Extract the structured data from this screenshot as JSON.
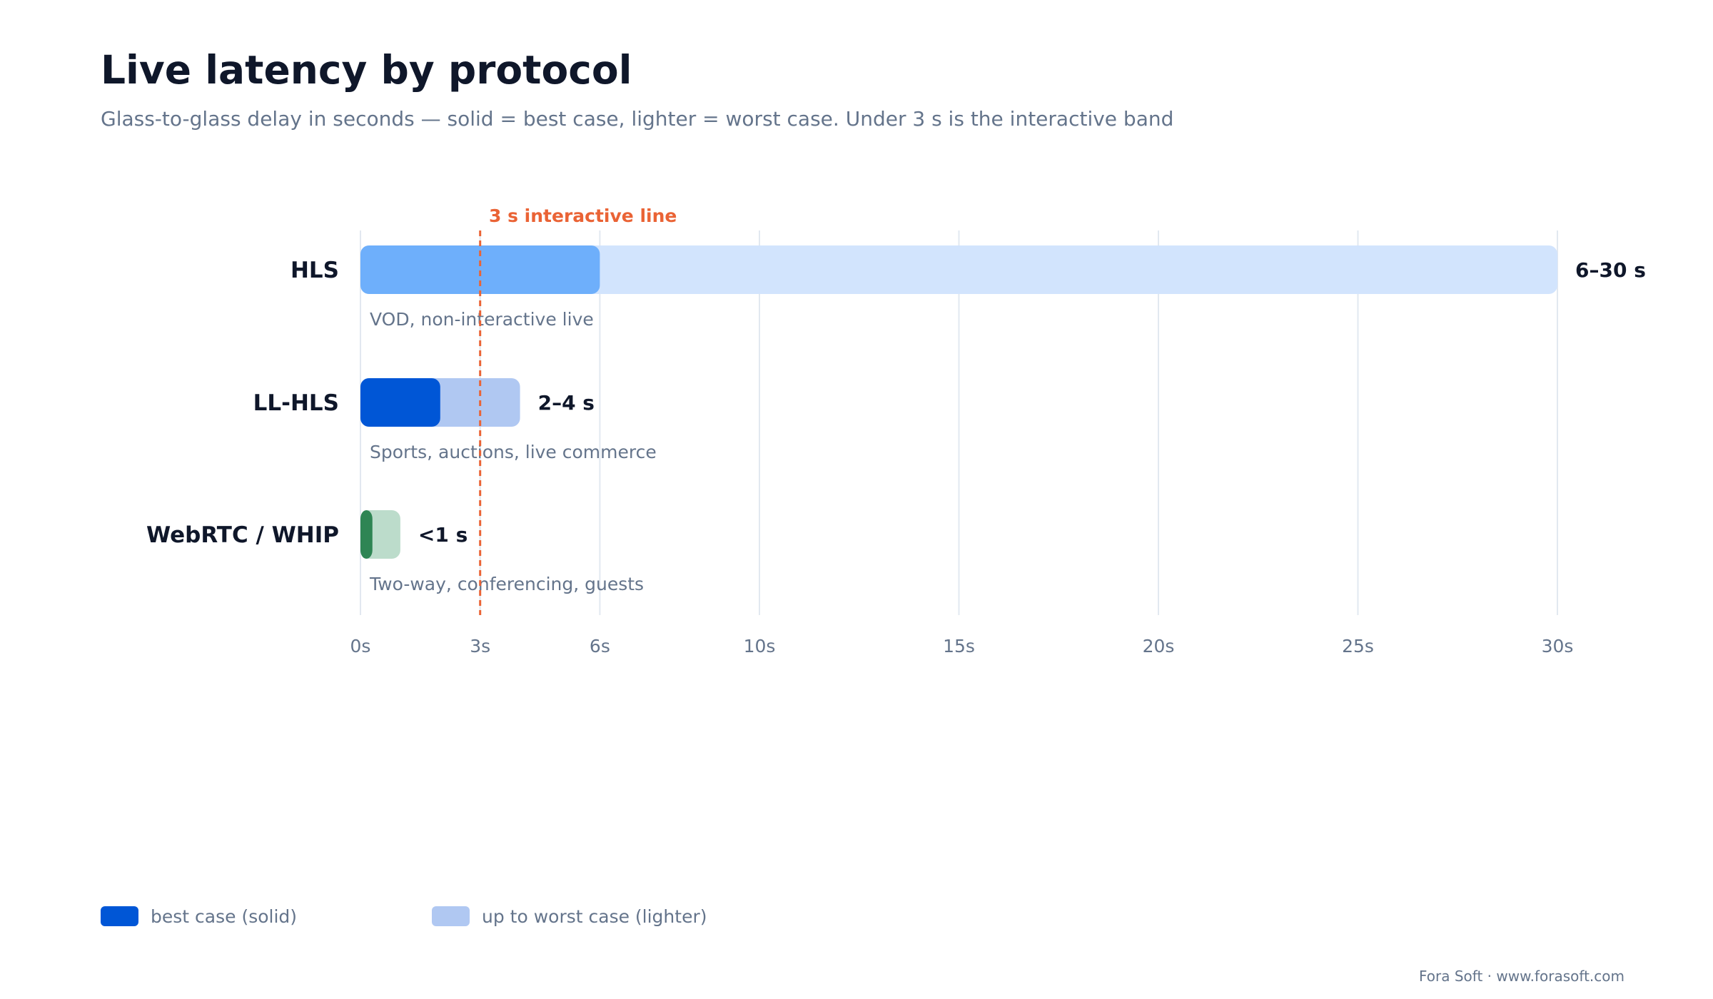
{
  "title": "Live latency by protocol",
  "subtitle": "Glass-to-glass delay in seconds — solid = best case, lighter = worst case. Under 3 s is the interactive band",
  "chart_data": {
    "type": "bar",
    "orientation": "horizontal",
    "categories": [
      "HLS",
      "LL-HLS",
      "WebRTC / WHIP"
    ],
    "series": [
      {
        "name": "best case (solid)",
        "values": [
          6,
          2,
          0.3
        ]
      },
      {
        "name": "up to worst case (lighter)",
        "values": [
          30,
          4,
          1
        ]
      }
    ],
    "value_labels": [
      "6–30 s",
      "2–4 s",
      "<1 s"
    ],
    "descriptions": [
      "VOD, non-interactive live",
      "Sports, auctions, live commerce",
      "Two-way, conferencing, guests"
    ],
    "bar_colors": [
      {
        "solid": "#6eaffb",
        "light": "#d2e4fd"
      },
      {
        "solid": "#0056d6",
        "light": "#b0c8f2"
      },
      {
        "solid": "#2e8554",
        "light": "#bcdccb"
      }
    ],
    "x_ticks": [
      0,
      3,
      6,
      10,
      15,
      20,
      25,
      30
    ],
    "x_tick_labels": [
      "0s",
      "3s",
      "6s",
      "10s",
      "15s",
      "20s",
      "25s",
      "30s"
    ],
    "xlim": [
      0,
      30
    ],
    "xlabel": "",
    "ylabel": "",
    "grid": "vertical",
    "reference_line": {
      "value": 3,
      "label": "3 s interactive line",
      "color": "#ea6335"
    },
    "legend_position": "bottom-left"
  },
  "legend": [
    {
      "label": "best case (solid)",
      "color": "#0056d6"
    },
    {
      "label": "up to worst case (lighter)",
      "color": "#b0c8f2"
    }
  ],
  "footer": "Fora Soft · www.forasoft.com"
}
